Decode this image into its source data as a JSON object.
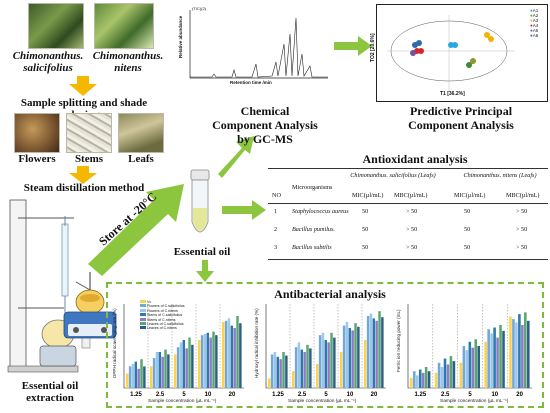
{
  "plants": {
    "plant1": "Chimonanthus. salicifolius",
    "plant2": "Chimonanthus. nitens"
  },
  "steps": {
    "splitting": "Sample splitting and shade drying",
    "steam": "Steam distillation method",
    "store": "Store at -20°C",
    "oil": "Essential oil",
    "extraction": "Essential oil extraction"
  },
  "parts": [
    "Flowers",
    "Stems",
    "Leafs"
  ],
  "gcms": {
    "title": "Chemical Component Analysis by GC-MS",
    "xlabel": "Retention time /min",
    "ylabel": "Relative abundance",
    "tag": "(TIC)(2)"
  },
  "pca": {
    "title": "Predictive Principal Component Analysis",
    "xlabel": "T1 [36.2%]",
    "ylabel": "TO2 [20.6%]",
    "legend": [
      "A1",
      "A2",
      "A3",
      "A4",
      "A5",
      "A6"
    ],
    "colors": [
      "#2aa7e0",
      "#8a9a2a",
      "#f0b400",
      "#d62728",
      "#7b4fa0",
      "#2b6cb0"
    ]
  },
  "antioxidant": {
    "title": "Antioxidant analysis",
    "header_group1": "Chimonanthus. salicifolius (Leafs)",
    "header_group2": "Chimonanthus. nitens (Leafs)",
    "col_no": "NO",
    "col_micro": "Microorganisms",
    "col_mic1": "MIC(µl/mL)",
    "col_mbc1": "MBC(µl/mL)",
    "col_mic2": "MIC(µl/mL)",
    "col_mbc2": "MBC(µl/mL)",
    "rows": [
      {
        "no": "1",
        "name": "Staphylococcus aureus",
        "mic1": "50",
        "mbc1": "> 50",
        "mic2": "50",
        "mbc2": "> 50"
      },
      {
        "no": "2",
        "name": "Bacillus pumilus.",
        "mic1": "50",
        "mbc1": "> 50",
        "mic2": "50",
        "mbc2": "> 50"
      },
      {
        "no": "3",
        "name": "Bacillus subtilis",
        "mic1": "50",
        "mbc1": "> 50",
        "mic2": "50",
        "mbc2": "> 50"
      }
    ]
  },
  "antibacterial": {
    "title": "Antibacterial analysis",
    "xlabel": "Sample concentration (µL mL⁻¹)",
    "chart1_ylabel": "DPPH radical scavenging rate (%)",
    "chart2_ylabel": "Hydroxyl radical inhibition rate (%)",
    "chart3_ylabel": "Ferric ion reducing power (mL)",
    "legend": [
      "Vc",
      "Flowers of C.salicifolius",
      "Flowers of C.nitens",
      "Stems of C.salicifolius",
      "Stems of C.nitens",
      "Leaves of C.salicifolius",
      "Leaves of C.nitens"
    ]
  },
  "chart_data": [
    {
      "type": "bar",
      "categories": [
        "1.25",
        "2.5",
        "5",
        "10",
        "20"
      ],
      "ylim": [
        0,
        70
      ],
      "series": [
        {
          "name": "Vc",
          "values": [
            12,
            18,
            28,
            40,
            55
          ]
        },
        {
          "name": "Flowers of C.salicifolius",
          "values": [
            18,
            25,
            34,
            44,
            56
          ]
        },
        {
          "name": "Flowers of C.nitens",
          "values": [
            20,
            30,
            38,
            45,
            58
          ]
        },
        {
          "name": "Stems of C.salicifolius",
          "values": [
            22,
            30,
            40,
            46,
            52
          ]
        },
        {
          "name": "Stems of C.nitens",
          "values": [
            16,
            26,
            33,
            42,
            50
          ]
        },
        {
          "name": "Leaves of C.salicifolius",
          "values": [
            24,
            32,
            42,
            47,
            60
          ]
        },
        {
          "name": "Leaves of C.nitens",
          "values": [
            18,
            28,
            36,
            44,
            54
          ]
        }
      ]
    },
    {
      "type": "bar",
      "categories": [
        "1.25",
        "2.5",
        "5",
        "10",
        "20"
      ],
      "ylim": [
        0,
        70
      ],
      "series": [
        {
          "name": "Vc",
          "values": [
            8,
            14,
            20,
            30,
            40
          ]
        },
        {
          "name": "Flowers of C.salicifolius",
          "values": [
            28,
            34,
            44,
            52,
            60
          ]
        },
        {
          "name": "Flowers of C.nitens",
          "values": [
            30,
            38,
            46,
            55,
            62
          ]
        },
        {
          "name": "Stems of C.salicifolius",
          "values": [
            26,
            32,
            40,
            50,
            58
          ]
        },
        {
          "name": "Stems of C.nitens",
          "values": [
            24,
            30,
            38,
            48,
            56
          ]
        },
        {
          "name": "Leaves of C.salicifolius",
          "values": [
            30,
            36,
            46,
            54,
            64
          ]
        },
        {
          "name": "Leaves of C.nitens",
          "values": [
            27,
            33,
            42,
            51,
            59
          ]
        }
      ]
    },
    {
      "type": "bar",
      "categories": [
        "1.25",
        "2.5",
        "5",
        "10",
        "20"
      ],
      "ylim": [
        0,
        1.0
      ],
      "series": [
        {
          "name": "Vc",
          "values": [
            0.12,
            0.18,
            0.3,
            0.55,
            0.85
          ]
        },
        {
          "name": "Flowers of C.salicifolius",
          "values": [
            0.2,
            0.3,
            0.5,
            0.7,
            0.82
          ]
        },
        {
          "name": "Flowers of C.nitens",
          "values": [
            0.15,
            0.25,
            0.45,
            0.65,
            0.78
          ]
        },
        {
          "name": "Stems of C.salicifolius",
          "values": [
            0.22,
            0.35,
            0.55,
            0.72,
            0.88
          ]
        },
        {
          "name": "Stems of C.nitens",
          "values": [
            0.18,
            0.28,
            0.48,
            0.6,
            0.75
          ]
        },
        {
          "name": "Leaves of C.salicifolius",
          "values": [
            0.25,
            0.38,
            0.58,
            0.75,
            0.9
          ]
        },
        {
          "name": "Leaves of C.nitens",
          "values": [
            0.2,
            0.32,
            0.5,
            0.68,
            0.8
          ]
        }
      ]
    }
  ],
  "colors": {
    "arrow": "#8cc63f",
    "dash_border": "#7dbb3c",
    "down_arrow": "#f5b800",
    "bars": [
      "#ffd24d",
      "#6fa8dc",
      "#9fc5e8",
      "#2a7ab0",
      "#8e7cc3",
      "#5aa66f",
      "#2e5e8a"
    ]
  }
}
